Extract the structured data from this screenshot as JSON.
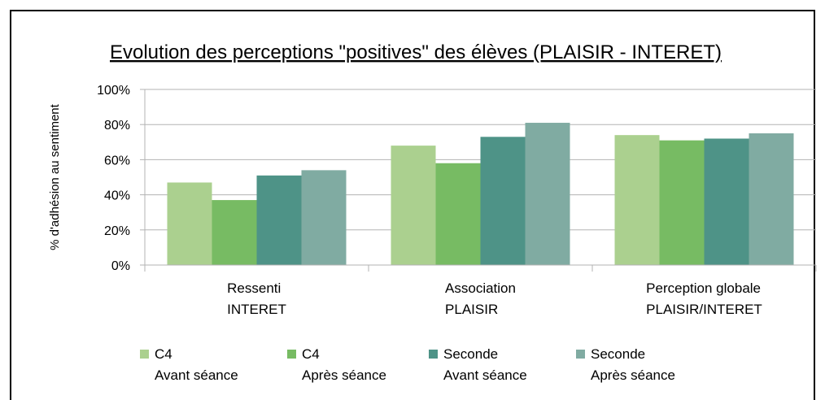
{
  "chart_data": {
    "type": "bar",
    "title": "Evolution des perceptions \"positives\" des élèves (PLAISIR - INTERET)",
    "y_label": "% d'adhésion au sentiment",
    "categories": [
      "Ressenti\nINTERET",
      "Association\nPLAISIR",
      "Perception globale\nPLAISIR/INTERET"
    ],
    "series": [
      {
        "name": "C4\nAvant séance",
        "color": "#abd08f",
        "values": [
          47,
          68,
          74
        ]
      },
      {
        "name": "C4\nAprès séance",
        "color": "#77bb63",
        "values": [
          37,
          58,
          71
        ]
      },
      {
        "name": "Seconde\nAvant séance",
        "color": "#4e9387",
        "values": [
          51,
          73,
          72
        ]
      },
      {
        "name": "Seconde\nAprès séance",
        "color": "#80aba2",
        "values": [
          54,
          81,
          75
        ]
      }
    ],
    "ylim": [
      0,
      100
    ],
    "yticks": [
      {
        "value": 0,
        "label": "0%"
      },
      {
        "value": 20,
        "label": "20%"
      },
      {
        "value": 40,
        "label": "40%"
      },
      {
        "value": 60,
        "label": "60%"
      },
      {
        "value": 80,
        "label": "80%"
      },
      {
        "value": 100,
        "label": "100%"
      }
    ],
    "grid": true,
    "legend": "bottom"
  }
}
